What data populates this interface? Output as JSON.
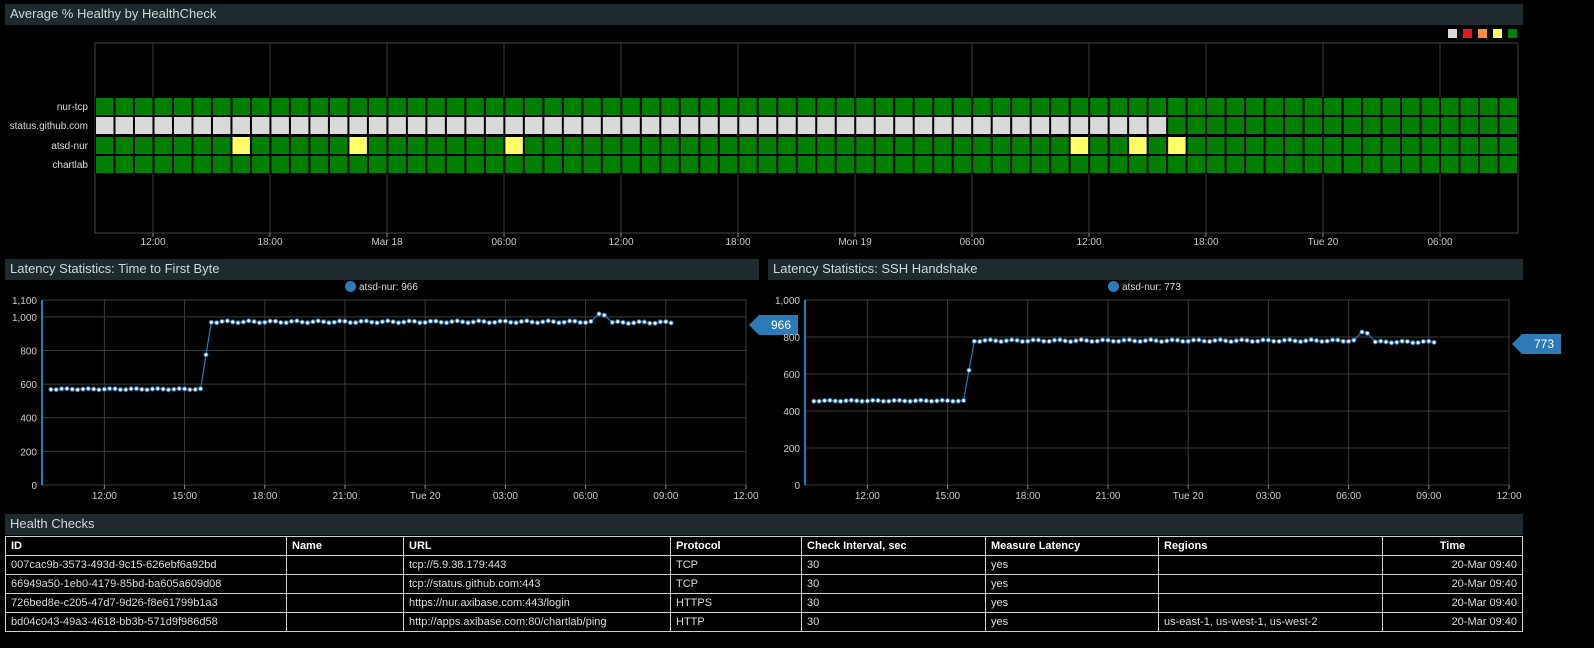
{
  "heatmap": {
    "title": "Average % Healthy by HealthCheck",
    "legend_colors": [
      "#d9d9d9",
      "#e31a1c",
      "#fd8d3c",
      "#ffff66",
      "#008000"
    ],
    "rows": [
      "nur-tcp",
      "status.github.com",
      "atsd-nur",
      "chartlab"
    ],
    "x_ticks": [
      "12:00",
      "18:00",
      "Mar 18",
      "06:00",
      "12:00",
      "18:00",
      "Mon 19",
      "06:00",
      "12:00",
      "18:00",
      "Tue 20",
      "06:00"
    ],
    "status_colors": {
      "ok": "#008000",
      "warn": "#ffff66",
      "nodata": "#d9d9d9"
    },
    "columns_count": 73,
    "github_nodata_until": 55,
    "atsd_warn_columns": [
      7,
      13,
      21,
      50,
      53,
      55
    ]
  },
  "ttfb": {
    "title": "Latency Statistics: Time to First Byte",
    "legend_label": "atsd-nur: 966",
    "last_value": "966",
    "y_ticks": [
      "0",
      "200",
      "400",
      "600",
      "800",
      "1,000",
      "1,100"
    ],
    "x_ticks": [
      "12:00",
      "15:00",
      "18:00",
      "21:00",
      "Tue 20",
      "03:00",
      "06:00",
      "09:00",
      "12:00"
    ]
  },
  "ssh": {
    "title": "Latency Statistics: SSH Handshake",
    "legend_label": "atsd-nur: 773",
    "last_value": "773",
    "y_ticks": [
      "0",
      "200",
      "400",
      "600",
      "800",
      "1,000"
    ],
    "x_ticks": [
      "12:00",
      "15:00",
      "18:00",
      "21:00",
      "Tue 20",
      "03:00",
      "06:00",
      "09:00",
      "12:00"
    ]
  },
  "chart_data": [
    {
      "type": "heatmap",
      "title": "Average % Healthy by HealthCheck",
      "rows": [
        "nur-tcp",
        "status.github.com",
        "atsd-nur",
        "chartlab"
      ],
      "x_tick_labels": [
        "12:00",
        "18:00",
        "Mar 18",
        "06:00",
        "12:00",
        "18:00",
        "Mon 19",
        "06:00",
        "12:00",
        "18:00",
        "Tue 20",
        "06:00"
      ]
    },
    {
      "type": "line",
      "title": "Latency Statistics: Time to First Byte",
      "series": [
        {
          "name": "atsd-nur",
          "last": 966
        }
      ],
      "ylim": [
        0,
        1100
      ],
      "x_range": [
        "09:40",
        "12:00"
      ],
      "segments": [
        {
          "x_start": 10.0,
          "x_end": 15.6,
          "value": 570
        },
        {
          "x_start": 15.8,
          "x_end": 15.8,
          "value": 775
        },
        {
          "x_start": 16.0,
          "x_end": 30.2,
          "value": 970
        },
        {
          "x_start": 30.5,
          "x_end": 30.8,
          "value": 1015
        },
        {
          "x_start": 31.0,
          "x_end": 33.2,
          "value": 966
        }
      ]
    },
    {
      "type": "line",
      "title": "Latency Statistics: SSH Handshake",
      "series": [
        {
          "name": "atsd-nur",
          "last": 773
        }
      ],
      "ylim": [
        0,
        1000
      ],
      "x_range": [
        "09:40",
        "12:00"
      ],
      "segments": [
        {
          "x_start": 10.0,
          "x_end": 15.6,
          "value": 455
        },
        {
          "x_start": 15.8,
          "x_end": 15.8,
          "value": 620
        },
        {
          "x_start": 16.0,
          "x_end": 30.2,
          "value": 780
        },
        {
          "x_start": 30.5,
          "x_end": 30.8,
          "value": 825
        },
        {
          "x_start": 31.0,
          "x_end": 33.2,
          "value": 773
        }
      ]
    }
  ],
  "table": {
    "title": "Health Checks",
    "headers": [
      "ID",
      "Name",
      "URL",
      "Protocol",
      "Check Interval, sec",
      "Measure Latency",
      "Regions",
      "Time"
    ],
    "rows": [
      [
        "007cac9b-3573-493d-9c15-626ebf6a92bd",
        "",
        "tcp://5.9.38.179:443",
        "TCP",
        "30",
        "yes",
        "",
        "20-Mar 09:40"
      ],
      [
        "66949a50-1eb0-4179-85bd-ba605a609d08",
        "",
        "tcp://status.github.com:443",
        "TCP",
        "30",
        "yes",
        "",
        "20-Mar 09:40"
      ],
      [
        "726bed8e-c205-47d7-9d26-f8e61799b1a3",
        "",
        "https://nur.axibase.com:443/login",
        "HTTPS",
        "30",
        "yes",
        "",
        "20-Mar 09:40"
      ],
      [
        "bd04c043-49a3-4618-bb3b-571d9f986d58",
        "",
        "http://apps.axibase.com:80/chartlab/ping",
        "HTTP",
        "30",
        "yes",
        "us-east-1, us-west-1, us-west-2",
        "20-Mar 09:40"
      ]
    ]
  }
}
